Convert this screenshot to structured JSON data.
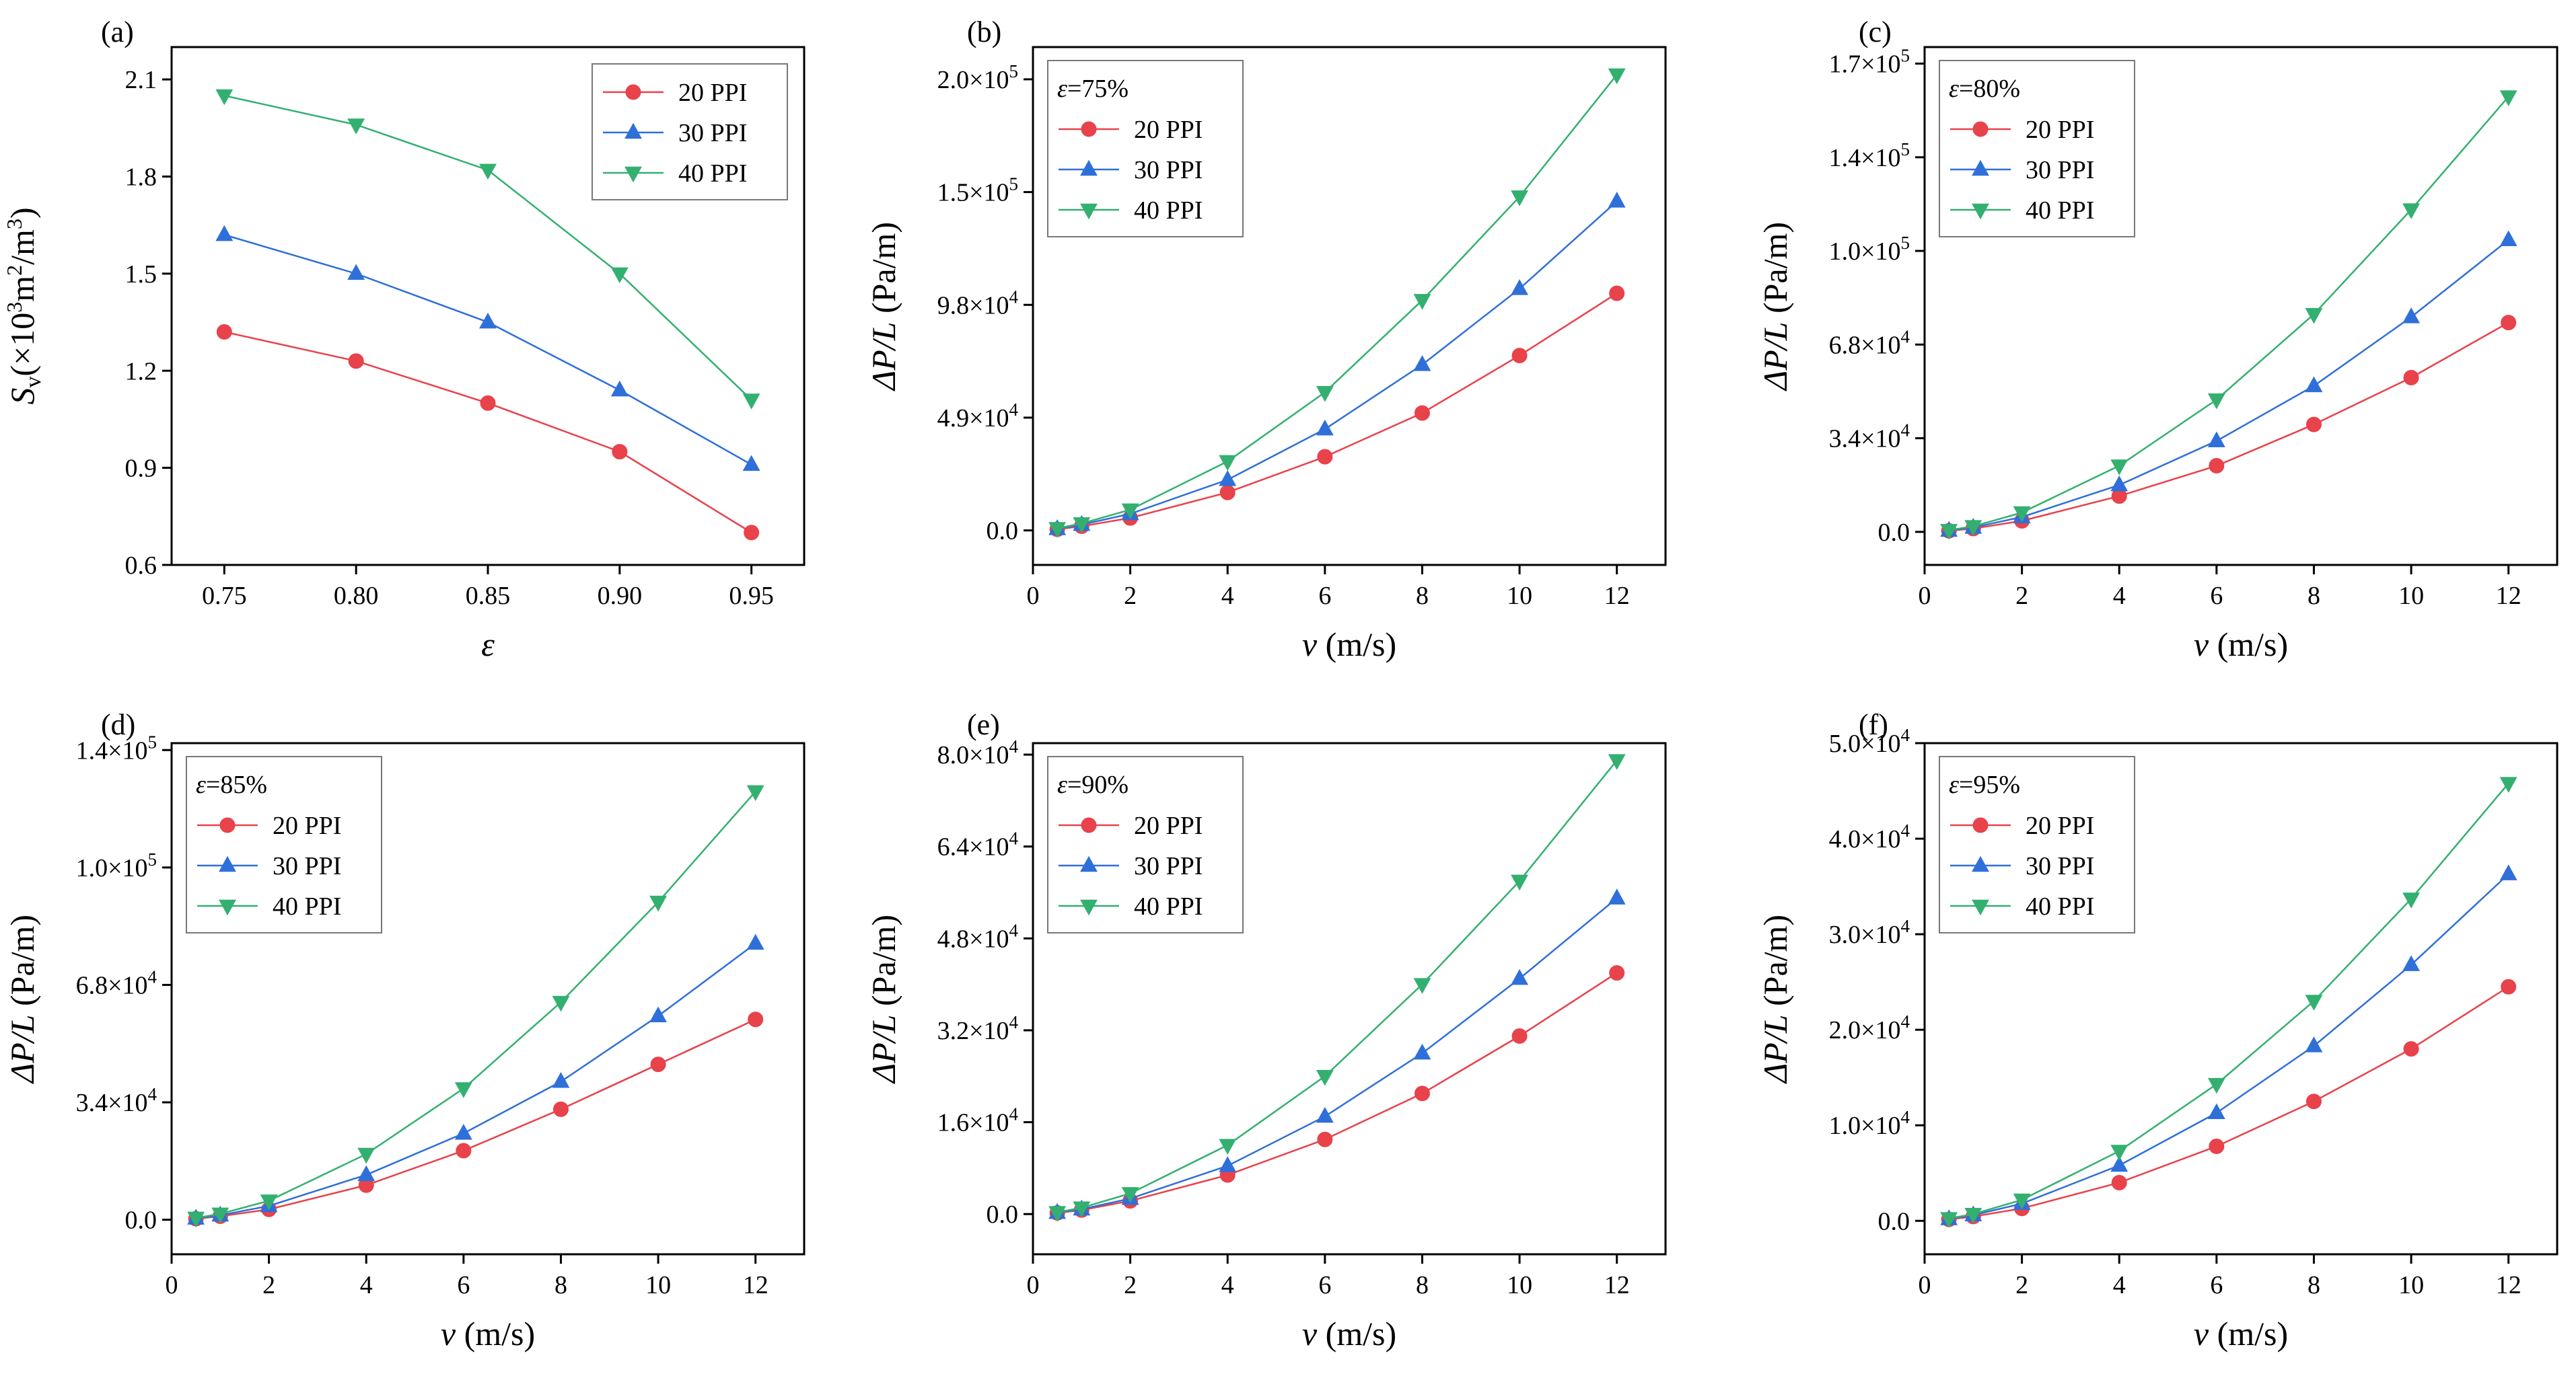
{
  "figure": {
    "series_colors": {
      "20 PPI": "#e8424b",
      "30 PPI": "#2f6fd9",
      "40 PPI": "#33b070"
    },
    "series_markers": {
      "20 PPI": "circle",
      "30 PPI": "triangle-up",
      "40 PPI": "triangle-down"
    }
  },
  "chart_data": [
    {
      "panel": "(a)",
      "type": "line",
      "xlabel": "ε",
      "ylabel": "S_v(×10^3 m^2/m^3)",
      "xlim": [
        0.73,
        0.97
      ],
      "ylim": [
        0.6,
        2.2
      ],
      "x": [
        0.75,
        0.8,
        0.85,
        0.9,
        0.95
      ],
      "x_ticks": [
        0.75,
        0.8,
        0.85,
        0.9,
        0.95
      ],
      "x_tick_labels": [
        "0.75",
        "0.80",
        "0.85",
        "0.90",
        "0.95"
      ],
      "y_ticks": [
        0.6,
        0.9,
        1.2,
        1.5,
        1.8,
        2.1
      ],
      "y_tick_labels": [
        "0.6",
        "0.9",
        "1.2",
        "1.5",
        "1.8",
        "2.1"
      ],
      "legend_title": "",
      "legend_position": "top-right",
      "series": [
        {
          "name": "20 PPI",
          "values": [
            1.32,
            1.23,
            1.1,
            0.95,
            0.7
          ]
        },
        {
          "name": "30 PPI",
          "values": [
            1.62,
            1.5,
            1.35,
            1.14,
            0.91
          ]
        },
        {
          "name": "40 PPI",
          "values": [
            2.05,
            1.96,
            1.82,
            1.5,
            1.11
          ]
        }
      ]
    },
    {
      "panel": "(b)",
      "type": "line",
      "xlabel": "v (m/s)",
      "ylabel": "ΔP/L (Pa/m)",
      "xlim": [
        0,
        13
      ],
      "ylim": [
        -15000,
        210000
      ],
      "x": [
        0.5,
        1,
        2,
        4,
        6,
        8,
        10,
        12
      ],
      "x_ticks": [
        0,
        2,
        4,
        6,
        8,
        10,
        12
      ],
      "x_tick_labels": [
        "0",
        "2",
        "4",
        "6",
        "8",
        "10",
        "12"
      ],
      "y_ticks": [
        0,
        49000,
        98000,
        147000,
        196000
      ],
      "y_tick_labels": [
        {
          "m": "0.0",
          "e": ""
        },
        {
          "m": "4.9×10",
          "e": "4"
        },
        {
          "m": "9.8×10",
          "e": "4"
        },
        {
          "m": "1.5×10",
          "e": "5"
        },
        {
          "m": "2.0×10",
          "e": "5"
        }
      ],
      "legend_title": "ε=75%",
      "legend_position": "top-left",
      "series": [
        {
          "name": "20 PPI",
          "values": [
            500,
            1800,
            5400,
            16500,
            32000,
            51000,
            76000,
            103000
          ]
        },
        {
          "name": "30 PPI",
          "values": [
            700,
            2500,
            7200,
            22000,
            44000,
            72000,
            105000,
            143000
          ]
        },
        {
          "name": "40 PPI",
          "values": [
            900,
            3000,
            9000,
            30000,
            60000,
            100000,
            145000,
            198000
          ]
        }
      ]
    },
    {
      "panel": "(c)",
      "type": "line",
      "xlabel": "v (m/s)",
      "ylabel": "ΔP/L (Pa/m)",
      "xlim": [
        0,
        13
      ],
      "ylim": [
        -12000,
        176000
      ],
      "x": [
        0.5,
        1,
        2,
        4,
        6,
        8,
        10,
        12
      ],
      "x_ticks": [
        0,
        2,
        4,
        6,
        8,
        10,
        12
      ],
      "x_tick_labels": [
        "0",
        "2",
        "4",
        "6",
        "8",
        "10",
        "12"
      ],
      "y_ticks": [
        0,
        34000,
        68000,
        102000,
        136000,
        170000
      ],
      "y_tick_labels": [
        {
          "m": "0.0",
          "e": ""
        },
        {
          "m": "3.4×10",
          "e": "4"
        },
        {
          "m": "6.8×10",
          "e": "4"
        },
        {
          "m": "1.0×10",
          "e": "5"
        },
        {
          "m": "1.4×10",
          "e": "5"
        },
        {
          "m": "1.7×10",
          "e": "5"
        }
      ],
      "legend_title": "ε=80%",
      "legend_position": "top-left",
      "series": [
        {
          "name": "20 PPI",
          "values": [
            400,
            1200,
            4000,
            13000,
            24000,
            39000,
            56000,
            76000
          ]
        },
        {
          "name": "30 PPI",
          "values": [
            500,
            1600,
            5400,
            17000,
            33000,
            53000,
            78000,
            106000
          ]
        },
        {
          "name": "40 PPI",
          "values": [
            600,
            2000,
            7000,
            24000,
            48000,
            79000,
            117000,
            158000
          ]
        }
      ]
    },
    {
      "panel": "(d)",
      "type": "line",
      "xlabel": "v (m/s)",
      "ylabel": "ΔP/L (Pa/m)",
      "xlim": [
        0,
        13
      ],
      "ylim": [
        -10000,
        138000
      ],
      "x": [
        0.5,
        1,
        2,
        4,
        6,
        8,
        10,
        12
      ],
      "x_ticks": [
        0,
        2,
        4,
        6,
        8,
        10,
        12
      ],
      "x_tick_labels": [
        "0",
        "2",
        "4",
        "6",
        "8",
        "10",
        "12"
      ],
      "y_ticks": [
        0,
        34000,
        68000,
        102000,
        136000
      ],
      "y_tick_labels": [
        {
          "m": "0.0",
          "e": ""
        },
        {
          "m": "3.4×10",
          "e": "4"
        },
        {
          "m": "6.8×10",
          "e": "4"
        },
        {
          "m": "1.0×10",
          "e": "5"
        },
        {
          "m": "1.4×10",
          "e": "5"
        }
      ],
      "legend_title": "ε=85%",
      "legend_position": "top-left",
      "series": [
        {
          "name": "20 PPI",
          "values": [
            300,
            1000,
            3000,
            10000,
            20000,
            32000,
            45000,
            58000
          ]
        },
        {
          "name": "30 PPI",
          "values": [
            400,
            1300,
            4000,
            13000,
            25000,
            40000,
            59000,
            80000
          ]
        },
        {
          "name": "40 PPI",
          "values": [
            500,
            1700,
            5500,
            19000,
            38000,
            63000,
            92000,
            124000
          ]
        }
      ]
    },
    {
      "panel": "(e)",
      "type": "line",
      "xlabel": "v (m/s)",
      "ylabel": "ΔP/L (Pa/m)",
      "xlim": [
        0,
        13
      ],
      "ylim": [
        -7000,
        82000
      ],
      "x": [
        0.5,
        1,
        2,
        4,
        6,
        8,
        10,
        12
      ],
      "x_ticks": [
        0,
        2,
        4,
        6,
        8,
        10,
        12
      ],
      "x_tick_labels": [
        "0",
        "2",
        "4",
        "6",
        "8",
        "10",
        "12"
      ],
      "y_ticks": [
        0,
        16000,
        32000,
        48000,
        64000,
        80000
      ],
      "y_tick_labels": [
        {
          "m": "0.0",
          "e": ""
        },
        {
          "m": "1.6×10",
          "e": "4"
        },
        {
          "m": "3.2×10",
          "e": "4"
        },
        {
          "m": "4.8×10",
          "e": "4"
        },
        {
          "m": "6.4×10",
          "e": "4"
        },
        {
          "m": "8.0×10",
          "e": "4"
        }
      ],
      "legend_title": "ε=90%",
      "legend_position": "top-left",
      "series": [
        {
          "name": "20 PPI",
          "values": [
            200,
            700,
            2300,
            6800,
            13000,
            21000,
            31000,
            42000
          ]
        },
        {
          "name": "30 PPI",
          "values": [
            250,
            850,
            2700,
            8400,
            17000,
            28000,
            41000,
            55000
          ]
        },
        {
          "name": "40 PPI",
          "values": [
            300,
            1100,
            3600,
            12000,
            24000,
            40000,
            58000,
            79000
          ]
        }
      ]
    },
    {
      "panel": "(f)",
      "type": "line",
      "xlabel": "v (m/s)",
      "ylabel": "ΔP/L (Pa/m)",
      "xlim": [
        0,
        13
      ],
      "ylim": [
        -3500,
        50000
      ],
      "x": [
        0.5,
        1,
        2,
        4,
        6,
        8,
        10,
        12
      ],
      "x_ticks": [
        0,
        2,
        4,
        6,
        8,
        10,
        12
      ],
      "x_tick_labels": [
        "0",
        "2",
        "4",
        "6",
        "8",
        "10",
        "12"
      ],
      "y_ticks": [
        0,
        10000,
        20000,
        30000,
        40000,
        50000
      ],
      "y_tick_labels": [
        {
          "m": "0.0",
          "e": ""
        },
        {
          "m": "1.0×10",
          "e": "4"
        },
        {
          "m": "2.0×10",
          "e": "4"
        },
        {
          "m": "3.0×10",
          "e": "4"
        },
        {
          "m": "4.0×10",
          "e": "4"
        },
        {
          "m": "5.0×10",
          "e": "4"
        }
      ],
      "legend_title": "ε=95%",
      "legend_position": "top-left",
      "series": [
        {
          "name": "20 PPI",
          "values": [
            150,
            450,
            1300,
            4000,
            7800,
            12500,
            18000,
            24500
          ]
        },
        {
          "name": "30 PPI",
          "values": [
            200,
            600,
            1800,
            5800,
            11300,
            18300,
            26800,
            36300
          ]
        },
        {
          "name": "40 PPI",
          "values": [
            250,
            700,
            2200,
            7300,
            14300,
            23000,
            33700,
            45800
          ]
        }
      ]
    }
  ]
}
